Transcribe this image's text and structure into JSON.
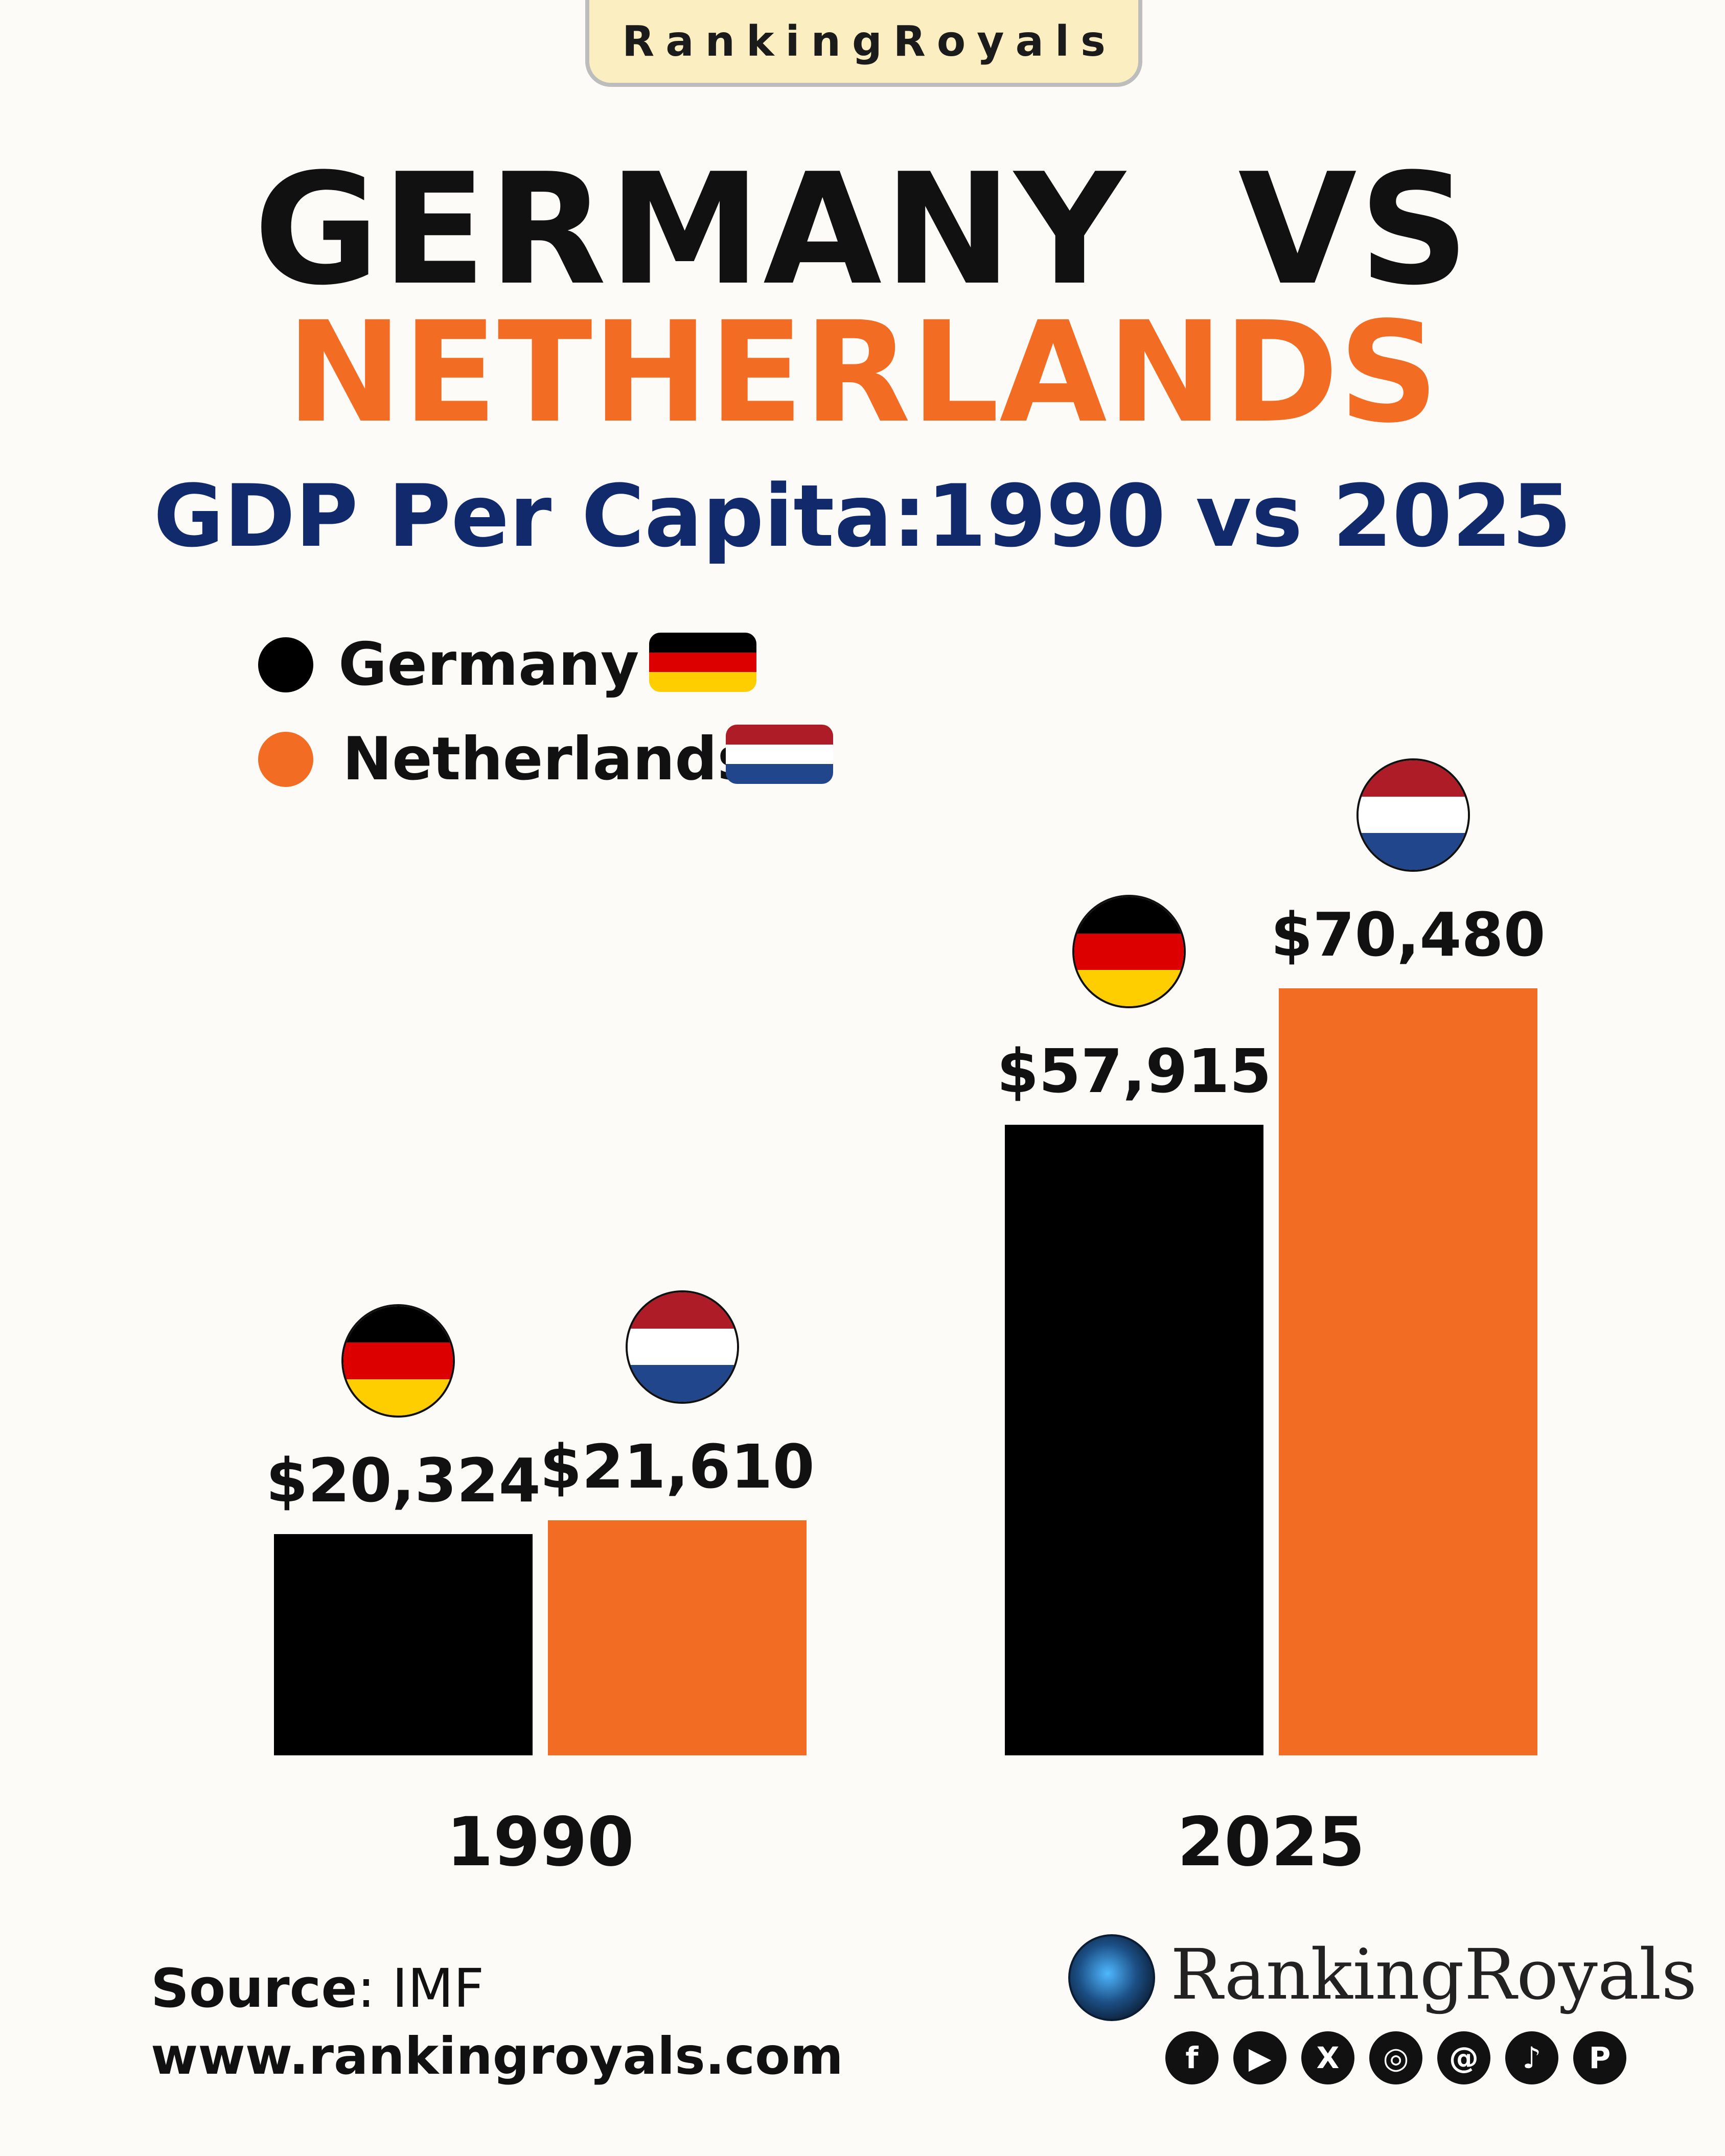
{
  "badge": "RankingRoyals",
  "title_line1": "GERMANY  VS",
  "title_line2": "NETHERLANDS",
  "subtitle": "GDP Per Capita:1990 vs 2025",
  "colors": {
    "germany": "#000000",
    "netherlands": "#f26c23",
    "title_accent": "#f26c23",
    "subtitle": "#102a6b",
    "de_flag": [
      "#000000",
      "#dd0000",
      "#ffce00"
    ],
    "nl_flag": [
      "#ae1c28",
      "#ffffff",
      "#21468b"
    ]
  },
  "chart_data": {
    "type": "bar",
    "categories": [
      "1990",
      "2025"
    ],
    "series": [
      {
        "name": "Germany",
        "values": [
          20324,
          57915
        ],
        "labels": [
          "$20,324",
          "$57,915"
        ]
      },
      {
        "name": "Netherlands",
        "values": [
          21610,
          70480
        ],
        "labels": [
          "$21,610",
          "$70,480"
        ]
      }
    ],
    "legend": "top-left",
    "grid": false
  },
  "source": {
    "label": "Source",
    "value": ": IMF"
  },
  "website": "www.rankingroyals.com",
  "brand": "RankingRoyals",
  "social_icons": [
    "facebook-icon",
    "youtube-icon",
    "x-icon",
    "instagram-icon",
    "threads-icon",
    "tiktok-icon",
    "pinterest-icon"
  ]
}
